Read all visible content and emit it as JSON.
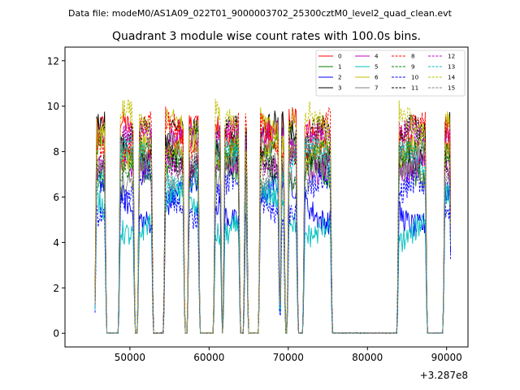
{
  "chart_data": {
    "type": "line",
    "suptitle": "Data file: modeM0/AS1A09_022T01_9000003702_25300cztM0_level2_quad_clean.evt",
    "title": "Quadrant 3 module wise count rates with 100.0s bins.",
    "xlabel": "",
    "ylabel": "",
    "x_offset_label": "+3.287e8",
    "xlim": [
      41800,
      92700
    ],
    "ylim": [
      -0.6,
      12.6
    ],
    "x_ticks": [
      50000,
      60000,
      70000,
      80000,
      90000
    ],
    "x_tick_labels": [
      "50000",
      "60000",
      "70000",
      "80000",
      "90000"
    ],
    "y_ticks": [
      0,
      2,
      4,
      6,
      8,
      10,
      12
    ],
    "y_tick_labels": [
      "0",
      "2",
      "4",
      "6",
      "8",
      "10",
      "12"
    ],
    "grid": false,
    "legend_position": "top-right",
    "bin_seconds": 100,
    "active_intervals": [
      [
        45600,
        47000
      ],
      [
        48600,
        50600
      ],
      [
        51000,
        52900
      ],
      [
        54300,
        56900
      ],
      [
        57300,
        58800
      ],
      [
        60600,
        61600
      ],
      [
        61800,
        63900
      ],
      [
        64400,
        64900
      ],
      [
        66300,
        68900
      ],
      [
        69000,
        69600
      ],
      [
        69900,
        71200
      ],
      [
        71900,
        75500
      ],
      [
        83800,
        87500
      ],
      [
        89600,
        90600
      ]
    ],
    "series": [
      {
        "name": "0",
        "color": "#ff0000",
        "dash": "solid",
        "level": 8.6
      },
      {
        "name": "1",
        "color": "#008000",
        "dash": "solid",
        "level": 7.8
      },
      {
        "name": "2",
        "color": "#0000ff",
        "dash": "solid",
        "level": 5.8
      },
      {
        "name": "3",
        "color": "#000000",
        "dash": "solid",
        "level": 8.4
      },
      {
        "name": "4",
        "color": "#c000c0",
        "dash": "solid",
        "level": 8.0
      },
      {
        "name": "5",
        "color": "#00bfbf",
        "dash": "solid",
        "level": 5.2
      },
      {
        "name": "6",
        "color": "#bfbf00",
        "dash": "solid",
        "level": 8.5
      },
      {
        "name": "7",
        "color": "#808080",
        "dash": "solid",
        "level": 7.5
      },
      {
        "name": "8",
        "color": "#ff0000",
        "dash": "dashed",
        "level": 8.7
      },
      {
        "name": "9",
        "color": "#008000",
        "dash": "dashed",
        "level": 7.6
      },
      {
        "name": "10",
        "color": "#0000ff",
        "dash": "dashed",
        "level": 6.0
      },
      {
        "name": "11",
        "color": "#000000",
        "dash": "dashed",
        "level": 8.2
      },
      {
        "name": "12",
        "color": "#c000c0",
        "dash": "dashed",
        "level": 8.1
      },
      {
        "name": "13",
        "color": "#00bfbf",
        "dash": "dashed",
        "level": 7.3
      },
      {
        "name": "14",
        "color": "#bfbf00",
        "dash": "dashed",
        "level": 8.9
      },
      {
        "name": "15",
        "color": "#808080",
        "dash": "dashed",
        "level": 7.4
      }
    ]
  }
}
